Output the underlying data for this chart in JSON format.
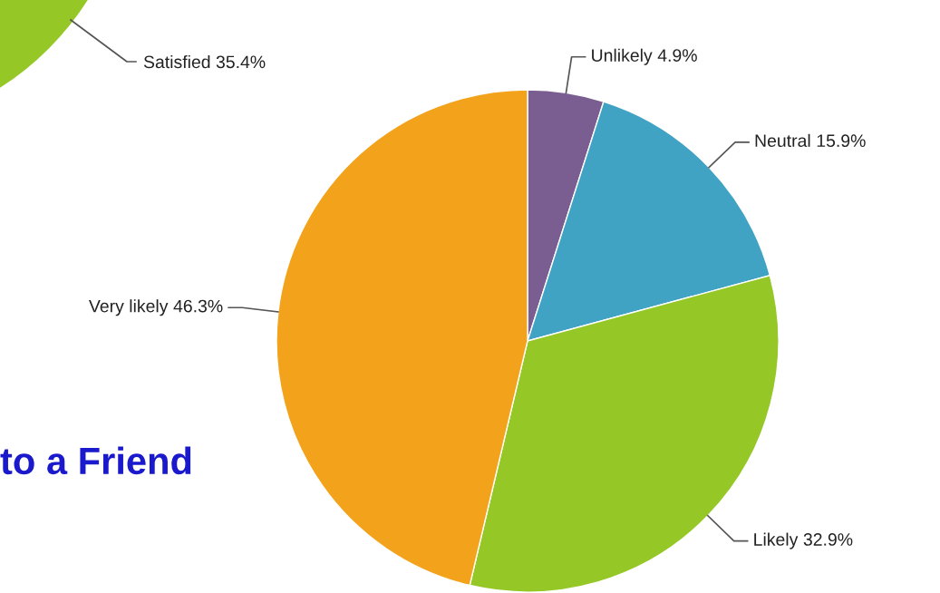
{
  "chart_data": {
    "type": "pie",
    "title": "to a Friend",
    "categories": [
      "Unlikely",
      "Neutral",
      "Likely",
      "Very likely"
    ],
    "values": [
      4.9,
      15.9,
      32.9,
      46.3
    ],
    "colors": [
      "#7b5e91",
      "#41a3c4",
      "#95c827",
      "#f3a31b"
    ],
    "value_labels": [
      "4.9%",
      "15.9%",
      "32.9%",
      "46.3%"
    ],
    "annotations": [
      "Satisfied 35.4%"
    ]
  }
}
